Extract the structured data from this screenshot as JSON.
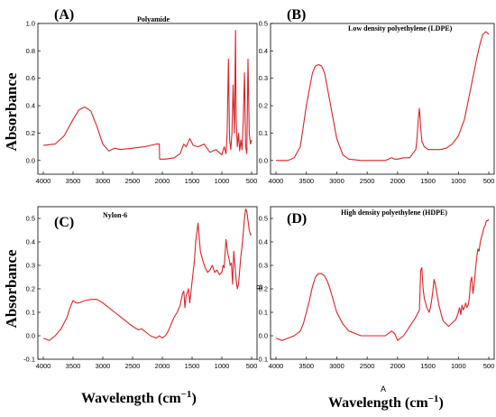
{
  "figure": {
    "ylabel_left_top": "Absorbance",
    "ylabel_left_bottom": "Absorbance",
    "xlabel_left": "Wavelength (cm",
    "xlabel_right": "Wavelength (cm",
    "xlabel_sup": "−1",
    "xlabel_close": ")",
    "stray_b": "B",
    "stray_a": "A"
  },
  "colors": {
    "series": "#d8232a",
    "axis": "#000000"
  },
  "chart_data": [
    {
      "type": "line",
      "label": "(A)",
      "title": "Polyamide",
      "xlabel": "",
      "ylabel": "",
      "xlim": [
        4000,
        500
      ],
      "ylim": [
        -0.1,
        1.0
      ],
      "xticks": [
        4000,
        3500,
        3000,
        2500,
        2000,
        1500,
        1000,
        500
      ],
      "yticks": [
        0.0,
        0.2,
        0.4,
        0.6,
        0.8,
        1.0
      ],
      "ytick_labels": [
        "0.0",
        "0.2",
        "0.4",
        "0.6",
        "0.8",
        "1.0"
      ],
      "grid": false,
      "series": [
        {
          "x": [
            4000,
            3800,
            3650,
            3500,
            3400,
            3300,
            3200,
            3100,
            3000,
            2900,
            2800,
            2700,
            2500,
            2300,
            2100,
            2050,
            2045,
            1950,
            1800,
            1700,
            1640,
            1600,
            1540,
            1480,
            1400,
            1300,
            1200,
            1100,
            1000,
            960,
            930,
            910,
            890,
            870,
            850,
            830,
            810,
            790,
            770,
            760,
            740,
            720,
            700,
            680,
            660,
            640,
            620,
            600,
            580,
            560,
            540,
            520,
            500
          ],
          "y": [
            0.11,
            0.12,
            0.18,
            0.3,
            0.37,
            0.39,
            0.36,
            0.25,
            0.12,
            0.07,
            0.09,
            0.08,
            0.09,
            0.1,
            0.12,
            0.12,
            0.01,
            0.01,
            0.02,
            0.05,
            0.12,
            0.1,
            0.16,
            0.11,
            0.1,
            0.12,
            0.06,
            0.08,
            0.04,
            0.1,
            0.05,
            0.2,
            0.74,
            0.15,
            0.08,
            0.2,
            0.55,
            0.2,
            0.95,
            0.3,
            0.1,
            0.2,
            0.07,
            0.15,
            0.08,
            0.3,
            0.64,
            0.1,
            0.05,
            0.74,
            0.2,
            0.12,
            0.15
          ]
        }
      ]
    },
    {
      "type": "line",
      "label": "(B)",
      "title": "Low density polyethylene (LDPE)",
      "xlabel": "",
      "ylabel": "",
      "xlim": [
        4000,
        500
      ],
      "ylim": [
        -0.05,
        0.5
      ],
      "xticks": [
        4000,
        3500,
        3000,
        2500,
        2000,
        1500,
        1000,
        500
      ],
      "yticks": [
        0.0,
        0.1,
        0.2,
        0.3,
        0.4,
        0.5
      ],
      "ytick_labels": [
        "0.0",
        "0.1",
        "0.2",
        "0.3",
        "0.4",
        "0.5"
      ],
      "grid": false,
      "series": [
        {
          "x": [
            4000,
            3900,
            3800,
            3700,
            3600,
            3500,
            3400,
            3350,
            3300,
            3250,
            3200,
            3100,
            3000,
            2900,
            2800,
            2600,
            2400,
            2200,
            2100,
            2050,
            2000,
            1900,
            1800,
            1700,
            1680,
            1660,
            1640,
            1620,
            1600,
            1560,
            1500,
            1400,
            1300,
            1200,
            1100,
            1000,
            900,
            800,
            700,
            650,
            600,
            550,
            520,
            500
          ],
          "y": [
            0.0,
            0.0,
            0.0,
            0.01,
            0.05,
            0.2,
            0.32,
            0.345,
            0.35,
            0.345,
            0.32,
            0.2,
            0.08,
            0.02,
            0.005,
            0.0,
            0.0,
            0.0,
            0.01,
            0.005,
            0.005,
            0.01,
            0.01,
            0.04,
            0.08,
            0.15,
            0.19,
            0.12,
            0.07,
            0.05,
            0.04,
            0.04,
            0.04,
            0.045,
            0.06,
            0.09,
            0.15,
            0.26,
            0.37,
            0.42,
            0.46,
            0.47,
            0.465,
            0.46
          ]
        }
      ]
    },
    {
      "type": "line",
      "label": "(C)",
      "title": "Nylon-6",
      "xlabel": "",
      "ylabel": "",
      "xlim": [
        4000,
        500
      ],
      "ylim": [
        -0.1,
        0.55
      ],
      "xticks": [
        4000,
        3500,
        3000,
        2500,
        2000,
        1500,
        1000,
        500
      ],
      "yticks": [
        -0.1,
        0.0,
        0.1,
        0.2,
        0.3,
        0.4,
        0.5
      ],
      "ytick_labels": [
        "-0.1",
        "0.0",
        "0.1",
        "0.2",
        "0.3",
        "0.4",
        "0.5"
      ],
      "grid": false,
      "series": [
        {
          "x": [
            4000,
            3900,
            3800,
            3700,
            3600,
            3550,
            3500,
            3450,
            3400,
            3300,
            3200,
            3100,
            3000,
            2900,
            2800,
            2700,
            2600,
            2500,
            2400,
            2350,
            2300,
            2200,
            2100,
            2050,
            2000,
            1950,
            1900,
            1850,
            1800,
            1750,
            1700,
            1660,
            1640,
            1620,
            1600,
            1560,
            1540,
            1500,
            1460,
            1440,
            1400,
            1380,
            1360,
            1320,
            1280,
            1240,
            1200,
            1160,
            1120,
            1080,
            1040,
            1000,
            980,
            960,
            930,
            900,
            880,
            860,
            840,
            820,
            800,
            780,
            760,
            740,
            720,
            700,
            680,
            660,
            640,
            620,
            600,
            580,
            560,
            540,
            520,
            500
          ],
          "y": [
            -0.01,
            -0.02,
            0.0,
            0.03,
            0.08,
            0.12,
            0.15,
            0.14,
            0.14,
            0.15,
            0.155,
            0.155,
            0.14,
            0.12,
            0.1,
            0.08,
            0.06,
            0.04,
            0.025,
            0.03,
            0.02,
            0.0,
            -0.01,
            0.0,
            -0.01,
            0.0,
            0.02,
            0.05,
            0.08,
            0.1,
            0.13,
            0.18,
            0.19,
            0.12,
            0.17,
            0.2,
            0.14,
            0.23,
            0.32,
            0.4,
            0.48,
            0.42,
            0.36,
            0.32,
            0.29,
            0.27,
            0.28,
            0.3,
            0.27,
            0.28,
            0.26,
            0.27,
            0.3,
            0.29,
            0.41,
            0.35,
            0.33,
            0.3,
            0.31,
            0.22,
            0.36,
            0.3,
            0.24,
            0.2,
            0.22,
            0.28,
            0.34,
            0.38,
            0.44,
            0.5,
            0.54,
            0.53,
            0.49,
            0.45,
            0.43,
            0.43
          ]
        }
      ]
    },
    {
      "type": "line",
      "label": "(D)",
      "title": "High density polyethylene (HDPE)",
      "xlabel": "",
      "ylabel": "",
      "xlim": [
        4000,
        500
      ],
      "ylim": [
        -0.1,
        0.55
      ],
      "xticks": [
        4000,
        3500,
        3000,
        2500,
        2000,
        1500,
        1000,
        500
      ],
      "yticks": [
        -0.1,
        0.0,
        0.1,
        0.2,
        0.3,
        0.4,
        0.5
      ],
      "ytick_labels": [
        "-0.1",
        "0.0",
        "0.1",
        "0.2",
        "0.3",
        "0.4",
        "0.5"
      ],
      "grid": false,
      "series": [
        {
          "x": [
            4000,
            3900,
            3800,
            3700,
            3600,
            3550,
            3500,
            3450,
            3400,
            3350,
            3300,
            3250,
            3200,
            3150,
            3100,
            3000,
            2900,
            2800,
            2700,
            2600,
            2400,
            2200,
            2100,
            2050,
            2000,
            1950,
            1900,
            1850,
            1800,
            1750,
            1720,
            1700,
            1680,
            1660,
            1640,
            1620,
            1600,
            1580,
            1560,
            1540,
            1520,
            1500,
            1480,
            1460,
            1440,
            1420,
            1400,
            1380,
            1360,
            1340,
            1320,
            1300,
            1280,
            1260,
            1240,
            1200,
            1160,
            1120,
            1080,
            1040,
            1000,
            980,
            960,
            940,
            920,
            900,
            880,
            860,
            840,
            820,
            800,
            780,
            760,
            740,
            720,
            700,
            680,
            660,
            640,
            620,
            600,
            580,
            560,
            540,
            520,
            500
          ],
          "y": [
            -0.01,
            -0.02,
            -0.01,
            0.0,
            0.02,
            0.05,
            0.1,
            0.15,
            0.21,
            0.25,
            0.265,
            0.265,
            0.255,
            0.23,
            0.19,
            0.1,
            0.05,
            0.02,
            0.01,
            0.0,
            0.0,
            0.0,
            0.02,
            0.01,
            -0.02,
            -0.01,
            0.0,
            0.02,
            0.04,
            0.06,
            0.07,
            0.08,
            0.09,
            0.1,
            0.11,
            0.28,
            0.29,
            0.2,
            0.16,
            0.14,
            0.12,
            0.11,
            0.1,
            0.12,
            0.15,
            0.19,
            0.24,
            0.22,
            0.19,
            0.16,
            0.13,
            0.11,
            0.09,
            0.07,
            0.06,
            0.05,
            0.04,
            0.05,
            0.06,
            0.07,
            0.1,
            0.12,
            0.09,
            0.13,
            0.11,
            0.12,
            0.14,
            0.12,
            0.13,
            0.16,
            0.23,
            0.25,
            0.18,
            0.22,
            0.28,
            0.33,
            0.37,
            0.36,
            0.4,
            0.42,
            0.44,
            0.46,
            0.47,
            0.49,
            0.49,
            0.495
          ]
        }
      ]
    }
  ]
}
